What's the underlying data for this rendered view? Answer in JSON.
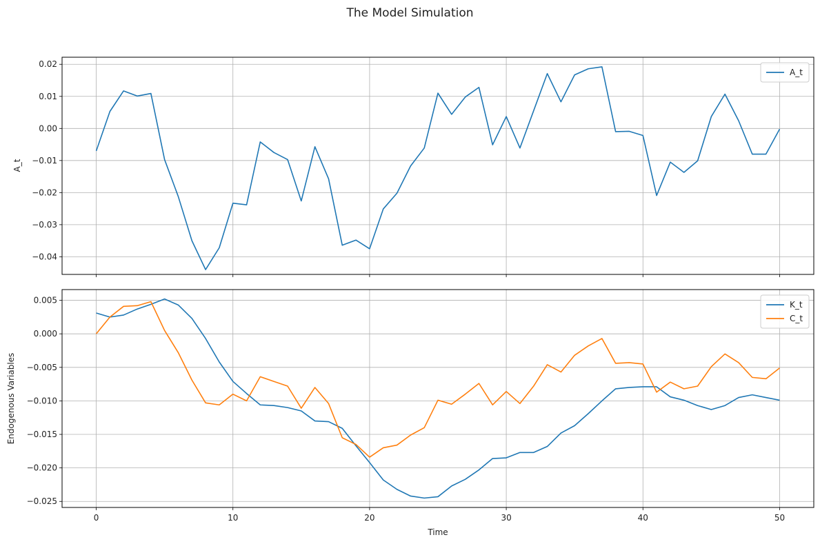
{
  "figure": {
    "title": "The Model Simulation"
  },
  "chart_data": [
    {
      "type": "line",
      "ylabel": "A_t",
      "xlabel": "",
      "xlim": [
        -2.5,
        52.5
      ],
      "ylim": [
        -0.0455,
        0.0222
      ],
      "xticks": [
        0,
        10,
        20,
        30,
        40,
        50
      ],
      "xtick_labels": [],
      "yticks": [
        -0.04,
        -0.03,
        -0.02,
        -0.01,
        0.0,
        0.01,
        0.02
      ],
      "ytick_labels": [
        "−0.04",
        "−0.03",
        "−0.02",
        "−0.01",
        "0.00",
        "0.01",
        "0.02"
      ],
      "grid": true,
      "legend": "top-right",
      "x": [
        0,
        1,
        2,
        3,
        4,
        5,
        6,
        7,
        8,
        9,
        10,
        11,
        12,
        13,
        14,
        15,
        16,
        17,
        18,
        19,
        20,
        21,
        22,
        23,
        24,
        25,
        26,
        27,
        28,
        29,
        30,
        31,
        32,
        33,
        34,
        35,
        36,
        37,
        38,
        39,
        40,
        41,
        42,
        43,
        44,
        45,
        46,
        47,
        48,
        49,
        50
      ],
      "series": [
        {
          "name": "A_t",
          "color": "#1f77b4",
          "values": [
            -0.007,
            0.0053,
            0.0117,
            0.0101,
            0.0109,
            -0.0097,
            -0.0212,
            -0.035,
            -0.044,
            -0.0372,
            -0.0233,
            -0.0238,
            -0.0042,
            -0.0075,
            -0.0097,
            -0.0226,
            -0.0057,
            -0.0157,
            -0.0364,
            -0.0348,
            -0.0375,
            -0.0251,
            -0.0202,
            -0.0117,
            -0.0061,
            0.011,
            0.0044,
            0.0098,
            0.0128,
            -0.0051,
            0.0037,
            -0.0061,
            0.0055,
            0.0171,
            0.0083,
            0.0167,
            0.0186,
            0.0192,
            -0.001,
            -0.0009,
            -0.0022,
            -0.0209,
            -0.0105,
            -0.0137,
            -0.0101,
            0.0037,
            0.0107,
            0.0024,
            -0.008,
            -0.008,
            -0.0002
          ]
        }
      ]
    },
    {
      "type": "line",
      "ylabel": "Endogenous Variables",
      "xlabel": "Time",
      "xlim": [
        -2.5,
        52.5
      ],
      "ylim": [
        -0.0259,
        0.0066
      ],
      "xticks": [
        0,
        10,
        20,
        30,
        40,
        50
      ],
      "xtick_labels": [
        "0",
        "10",
        "20",
        "30",
        "40",
        "50"
      ],
      "yticks": [
        -0.025,
        -0.02,
        -0.015,
        -0.01,
        -0.005,
        0.0,
        0.005
      ],
      "ytick_labels": [
        "−0.025",
        "−0.020",
        "−0.015",
        "−0.010",
        "−0.005",
        "0.000",
        "0.005"
      ],
      "grid": true,
      "legend": "top-right",
      "x": [
        0,
        1,
        2,
        3,
        4,
        5,
        6,
        7,
        8,
        9,
        10,
        11,
        12,
        13,
        14,
        15,
        16,
        17,
        18,
        19,
        20,
        21,
        22,
        23,
        24,
        25,
        26,
        27,
        28,
        29,
        30,
        31,
        32,
        33,
        34,
        35,
        36,
        37,
        38,
        39,
        40,
        41,
        42,
        43,
        44,
        45,
        46,
        47,
        48,
        49,
        50
      ],
      "series": [
        {
          "name": "K_t",
          "color": "#1f77b4",
          "values": [
            0.0031,
            0.0025,
            0.0028,
            0.0037,
            0.0044,
            0.0052,
            0.0043,
            0.0023,
            -0.0007,
            -0.0042,
            -0.0071,
            -0.0089,
            -0.0106,
            -0.0107,
            -0.011,
            -0.0115,
            -0.013,
            -0.0131,
            -0.0141,
            -0.0167,
            -0.0192,
            -0.0218,
            -0.0232,
            -0.0242,
            -0.0245,
            -0.0243,
            -0.0227,
            -0.0217,
            -0.0203,
            -0.0186,
            -0.0185,
            -0.0177,
            -0.0177,
            -0.0168,
            -0.0148,
            -0.0137,
            -0.0119,
            -0.01,
            -0.0082,
            -0.008,
            -0.0079,
            -0.0079,
            -0.0094,
            -0.0099,
            -0.0107,
            -0.0113,
            -0.0107,
            -0.0095,
            -0.0091,
            -0.0095,
            -0.0099
          ]
        },
        {
          "name": "C_t",
          "color": "#ff7f0e",
          "values": [
            0.0,
            0.0025,
            0.0041,
            0.0042,
            0.0048,
            0.0005,
            -0.0028,
            -0.0069,
            -0.0103,
            -0.0106,
            -0.009,
            -0.01,
            -0.0064,
            -0.0071,
            -0.0078,
            -0.0111,
            -0.008,
            -0.0104,
            -0.0155,
            -0.0165,
            -0.0184,
            -0.017,
            -0.0166,
            -0.0151,
            -0.014,
            -0.0099,
            -0.0105,
            -0.009,
            -0.0074,
            -0.0106,
            -0.0086,
            -0.0104,
            -0.0078,
            -0.0046,
            -0.0057,
            -0.0032,
            -0.0018,
            -0.0007,
            -0.0044,
            -0.0043,
            -0.0045,
            -0.0087,
            -0.0072,
            -0.0082,
            -0.0078,
            -0.0049,
            -0.003,
            -0.0043,
            -0.0065,
            -0.0067,
            -0.0051
          ]
        }
      ]
    }
  ]
}
